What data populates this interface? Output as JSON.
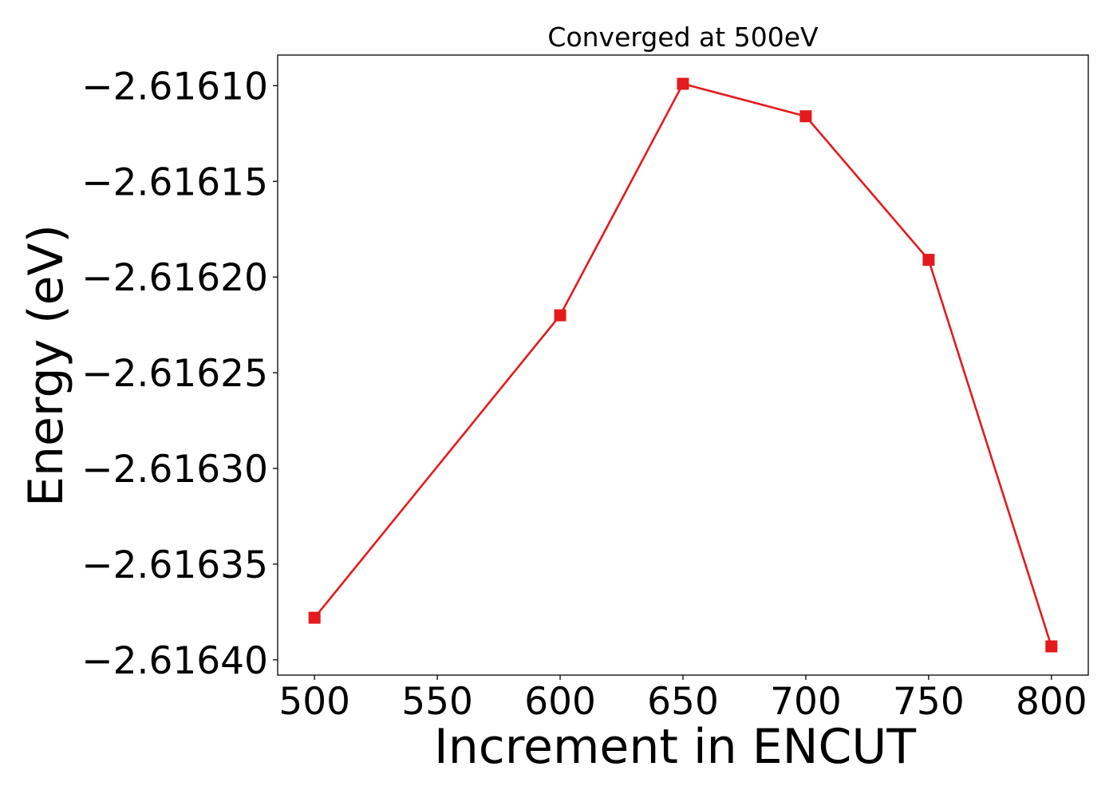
{
  "chart_data": {
    "type": "line",
    "title": "Converged at 500eV",
    "xlabel": "Increment in ENCUT",
    "ylabel": "Energy (eV)",
    "x": [
      500,
      600,
      650,
      700,
      750,
      800
    ],
    "series": [
      {
        "values": [
          -2.616378,
          -2.61622,
          -2.616099,
          -2.616116,
          -2.616191,
          -2.616393
        ],
        "color": "#e41a1c",
        "marker": "square"
      }
    ],
    "xticks": [
      500,
      550,
      600,
      650,
      700,
      750,
      800
    ],
    "xtick_labels": [
      "500",
      "550",
      "600",
      "650",
      "700",
      "750",
      "800"
    ],
    "yticks": [
      -2.6161,
      -2.61615,
      -2.6162,
      -2.61625,
      -2.6163,
      -2.61635,
      -2.6164
    ],
    "ytick_labels": [
      "−2.61610",
      "−2.61615",
      "−2.61620",
      "−2.61625",
      "−2.61630",
      "−2.61635",
      "−2.61640"
    ],
    "xlim": [
      485,
      815
    ],
    "ylim": [
      -2.616408,
      -2.616084
    ],
    "grid": false,
    "legend": "none"
  }
}
